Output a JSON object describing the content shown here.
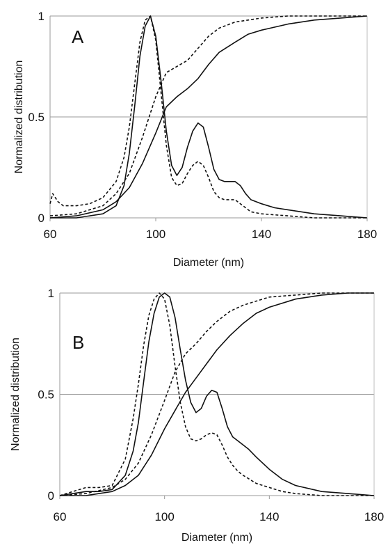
{
  "chart_data": [
    {
      "type": "line",
      "panel_label": "A",
      "xlabel": "Diameter (nm)",
      "ylabel": "Normalized distribution",
      "xlim": [
        60,
        180
      ],
      "ylim": [
        0,
        1
      ],
      "x_ticks": [
        "60",
        "100",
        "140",
        "180"
      ],
      "y_ticks": [
        "0",
        "0.5",
        "1"
      ],
      "gridlines_y": [
        0.5,
        1
      ],
      "series": [
        {
          "style": "solid",
          "kind": "density",
          "x": [
            60,
            70,
            80,
            85,
            88,
            90,
            92,
            94,
            96,
            98,
            100,
            102,
            104,
            106,
            108,
            110,
            112,
            114,
            116,
            118,
            120,
            122,
            124,
            126,
            128,
            130,
            132,
            134,
            136,
            140,
            145,
            150,
            160,
            170,
            180
          ],
          "y": [
            0.0,
            0.0,
            0.02,
            0.06,
            0.16,
            0.32,
            0.55,
            0.8,
            0.95,
            1.0,
            0.9,
            0.68,
            0.43,
            0.26,
            0.21,
            0.25,
            0.35,
            0.43,
            0.47,
            0.45,
            0.35,
            0.24,
            0.19,
            0.18,
            0.18,
            0.18,
            0.16,
            0.12,
            0.09,
            0.07,
            0.05,
            0.04,
            0.02,
            0.01,
            0.0
          ]
        },
        {
          "style": "dashed",
          "kind": "density",
          "x": [
            60,
            61,
            63,
            65,
            67,
            70,
            75,
            80,
            85,
            88,
            90,
            92,
            94,
            96,
            98,
            100,
            102,
            104,
            106,
            108,
            110,
            112,
            114,
            116,
            118,
            120,
            122,
            124,
            126,
            128,
            130,
            132,
            134,
            136,
            140,
            150,
            160,
            170,
            180
          ],
          "y": [
            0.07,
            0.12,
            0.08,
            0.06,
            0.06,
            0.06,
            0.07,
            0.1,
            0.18,
            0.3,
            0.45,
            0.66,
            0.87,
            0.98,
            1.0,
            0.88,
            0.62,
            0.36,
            0.2,
            0.16,
            0.17,
            0.22,
            0.26,
            0.28,
            0.26,
            0.2,
            0.13,
            0.1,
            0.09,
            0.09,
            0.09,
            0.07,
            0.05,
            0.03,
            0.02,
            0.01,
            0.0,
            0.0,
            0.0
          ]
        },
        {
          "style": "solid",
          "kind": "cumulative",
          "x": [
            60,
            70,
            80,
            85,
            90,
            95,
            98,
            100,
            104,
            108,
            112,
            116,
            120,
            124,
            130,
            135,
            140,
            150,
            160,
            170,
            180
          ],
          "y": [
            0.0,
            0.01,
            0.04,
            0.08,
            0.15,
            0.27,
            0.36,
            0.42,
            0.55,
            0.6,
            0.64,
            0.69,
            0.76,
            0.82,
            0.87,
            0.91,
            0.93,
            0.96,
            0.98,
            0.99,
            1.0
          ]
        },
        {
          "style": "dashed",
          "kind": "cumulative",
          "x": [
            60,
            70,
            80,
            85,
            90,
            95,
            98,
            100,
            104,
            108,
            112,
            116,
            120,
            124,
            130,
            135,
            140,
            150,
            160,
            170,
            180
          ],
          "y": [
            0.01,
            0.02,
            0.06,
            0.12,
            0.22,
            0.4,
            0.52,
            0.6,
            0.72,
            0.75,
            0.78,
            0.84,
            0.9,
            0.94,
            0.97,
            0.98,
            0.99,
            1.0,
            1.0,
            1.0,
            1.0
          ]
        }
      ]
    },
    {
      "type": "line",
      "panel_label": "B",
      "xlabel": "Diameter (nm)",
      "ylabel": "Normalized distribution",
      "xlim": [
        60,
        180
      ],
      "ylim": [
        0,
        1
      ],
      "x_ticks": [
        "60",
        "100",
        "140",
        "180"
      ],
      "y_ticks": [
        "0",
        "0.5",
        "1"
      ],
      "gridlines_y": [
        0.5,
        1
      ],
      "series": [
        {
          "style": "solid",
          "kind": "density",
          "x": [
            60,
            65,
            70,
            75,
            80,
            85,
            88,
            90,
            92,
            94,
            96,
            98,
            100,
            102,
            104,
            106,
            108,
            110,
            112,
            114,
            116,
            118,
            120,
            122,
            124,
            126,
            128,
            130,
            132,
            135,
            140,
            145,
            150,
            160,
            170,
            180
          ],
          "y": [
            0.0,
            0.01,
            0.02,
            0.02,
            0.03,
            0.1,
            0.22,
            0.36,
            0.56,
            0.76,
            0.9,
            0.98,
            1.0,
            0.98,
            0.88,
            0.72,
            0.57,
            0.46,
            0.41,
            0.43,
            0.49,
            0.52,
            0.51,
            0.43,
            0.34,
            0.29,
            0.27,
            0.25,
            0.23,
            0.19,
            0.13,
            0.08,
            0.05,
            0.02,
            0.01,
            0.0
          ]
        },
        {
          "style": "dashed",
          "kind": "density",
          "x": [
            60,
            65,
            70,
            75,
            80,
            85,
            88,
            90,
            92,
            94,
            96,
            98,
            100,
            102,
            104,
            106,
            108,
            110,
            112,
            114,
            116,
            118,
            120,
            122,
            124,
            126,
            128,
            130,
            135,
            140,
            145,
            150,
            160,
            170,
            180
          ],
          "y": [
            0.0,
            0.02,
            0.04,
            0.04,
            0.05,
            0.18,
            0.38,
            0.55,
            0.74,
            0.89,
            0.97,
            1.0,
            0.97,
            0.84,
            0.64,
            0.46,
            0.34,
            0.28,
            0.27,
            0.28,
            0.3,
            0.31,
            0.3,
            0.25,
            0.19,
            0.15,
            0.12,
            0.1,
            0.06,
            0.04,
            0.02,
            0.01,
            0.0,
            0.0,
            0.0
          ]
        },
        {
          "style": "solid",
          "kind": "cumulative",
          "x": [
            60,
            70,
            80,
            85,
            90,
            95,
            100,
            104,
            108,
            112,
            116,
            120,
            125,
            130,
            135,
            140,
            150,
            160,
            170,
            180
          ],
          "y": [
            0.0,
            0.0,
            0.02,
            0.05,
            0.1,
            0.2,
            0.33,
            0.42,
            0.51,
            0.58,
            0.65,
            0.72,
            0.79,
            0.85,
            0.9,
            0.93,
            0.97,
            0.99,
            1.0,
            1.0
          ]
        },
        {
          "style": "dashed",
          "kind": "cumulative",
          "x": [
            60,
            70,
            80,
            85,
            90,
            95,
            100,
            104,
            108,
            112,
            116,
            120,
            125,
            130,
            135,
            140,
            150,
            160,
            170,
            180
          ],
          "y": [
            0.0,
            0.01,
            0.04,
            0.08,
            0.16,
            0.3,
            0.47,
            0.61,
            0.7,
            0.75,
            0.81,
            0.86,
            0.91,
            0.94,
            0.96,
            0.98,
            0.99,
            1.0,
            1.0,
            1.0
          ]
        }
      ]
    }
  ]
}
